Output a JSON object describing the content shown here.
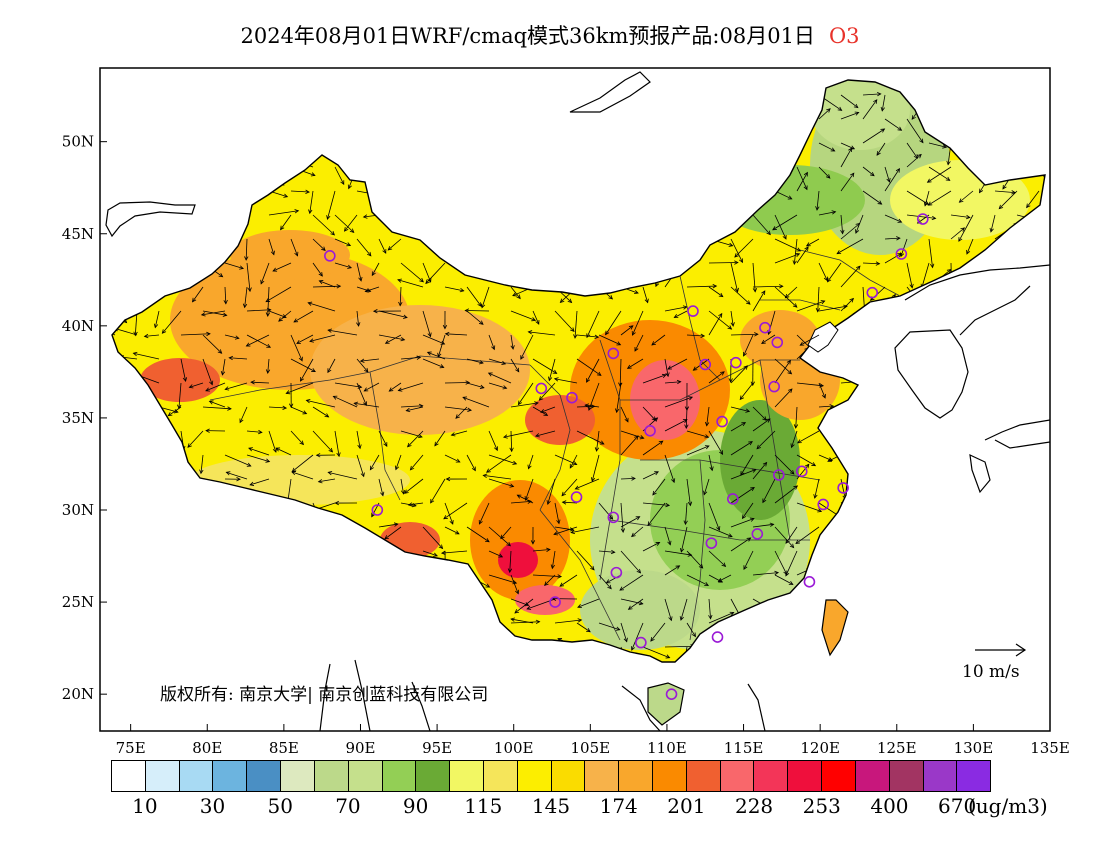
{
  "title": {
    "text": "2024年08月01日WRF/cmaq模式36km预报产品:08月01日",
    "species": "O3"
  },
  "map": {
    "lon_ticks": [
      "75E",
      "80E",
      "85E",
      "90E",
      "95E",
      "100E",
      "105E",
      "110E",
      "115E",
      "120E",
      "125E",
      "130E",
      "135E"
    ],
    "lat_ticks": [
      "20N",
      "25N",
      "30N",
      "35N",
      "40N",
      "45N",
      "50N"
    ],
    "copyright": "版权所有: 南京大学| 南京创蓝科技有限公司",
    "wind_scale_label": "10 m/s",
    "lon_range": [
      73,
      135
    ],
    "lat_range": [
      18,
      54
    ]
  },
  "colorbar": {
    "colors": [
      "#ffffff",
      "#d6eefa",
      "#a8daf3",
      "#6cb4df",
      "#4a8fc4",
      "#dde9bf",
      "#bcd98a",
      "#c5e08c",
      "#93cf55",
      "#6aaa35",
      "#f2f763",
      "#f5e55a",
      "#fcee00",
      "#fadc00",
      "#f7b24a",
      "#f9a72c",
      "#fa8a00",
      "#f06030",
      "#f9676b",
      "#f33558",
      "#ef0f3c",
      "#ff0000",
      "#c8177c",
      "#a23462",
      "#9a38c8",
      "#8a2be2"
    ],
    "labels": [
      "10",
      "30",
      "50",
      "70",
      "90",
      "115",
      "145",
      "174",
      "201",
      "228",
      "253",
      "400",
      "670"
    ],
    "unit": "(ug/m3)"
  }
}
